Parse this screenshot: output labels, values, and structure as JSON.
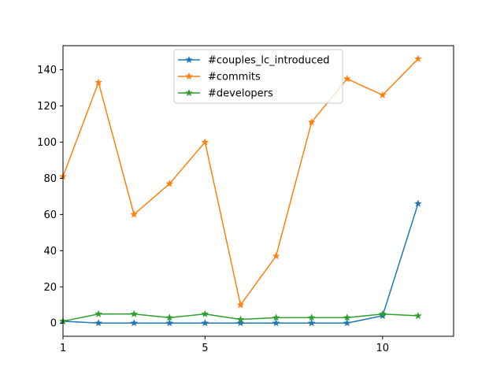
{
  "chart_data": {
    "type": "line",
    "x": [
      0,
      1,
      2,
      3,
      4,
      5,
      6,
      7,
      8,
      9,
      10
    ],
    "xticks": [
      0,
      4,
      9
    ],
    "xtick_labels": [
      "1",
      "5",
      "10"
    ],
    "xlim": [
      0,
      11
    ],
    "yticks": [
      0,
      20,
      40,
      60,
      80,
      100,
      120,
      140
    ],
    "ylim": [
      -7.3,
      153.3
    ],
    "grid": false,
    "legend_position": "top-center",
    "marker": "star",
    "series": [
      {
        "name": "#couples_lc_introduced",
        "color": "#1f77b4",
        "values": [
          1,
          0,
          0,
          0,
          0,
          0,
          0,
          0,
          0,
          4,
          66
        ]
      },
      {
        "name": "#commits",
        "color": "#ff7f0e",
        "values": [
          81,
          133,
          60,
          77,
          100,
          10,
          37,
          111,
          135,
          126,
          146
        ]
      },
      {
        "name": "#developers",
        "color": "#2ca02c",
        "values": [
          1,
          5,
          5,
          3,
          5,
          2,
          3,
          3,
          3,
          5,
          4
        ]
      }
    ]
  }
}
